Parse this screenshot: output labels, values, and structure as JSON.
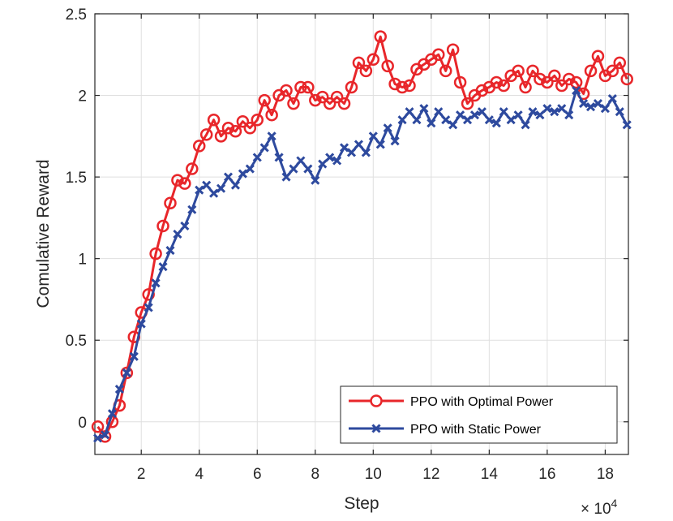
{
  "chart_data": {
    "type": "line",
    "xlabel": "Step",
    "ylabel": "Comulative Reward",
    "x_multiplier_base": "× 10",
    "x_multiplier_exp": "4",
    "xlim": [
      0.4,
      18.8
    ],
    "ylim": [
      -0.2,
      2.5
    ],
    "xticks": [
      2,
      4,
      6,
      8,
      10,
      12,
      14,
      16,
      18
    ],
    "xtick_labels": [
      "2",
      "4",
      "6",
      "8",
      "10",
      "12",
      "14",
      "16",
      "18"
    ],
    "yticks": [
      0,
      0.5,
      1,
      1.5,
      2,
      2.5
    ],
    "ytick_labels": [
      "0",
      "0.5",
      "1",
      "1.5",
      "2",
      "2.5"
    ],
    "grid": true,
    "legend_position": "bottom-right",
    "series": [
      {
        "name": "PPO with Optimal Power",
        "color": "#e8262a",
        "marker": "circle",
        "x": [
          0.5,
          0.75,
          1.0,
          1.25,
          1.5,
          1.75,
          2.0,
          2.25,
          2.5,
          2.75,
          3.0,
          3.25,
          3.5,
          3.75,
          4.0,
          4.25,
          4.5,
          4.75,
          5.0,
          5.25,
          5.5,
          5.75,
          6.0,
          6.25,
          6.5,
          6.75,
          7.0,
          7.25,
          7.5,
          7.75,
          8.0,
          8.25,
          8.5,
          8.75,
          9.0,
          9.25,
          9.5,
          9.75,
          10.0,
          10.25,
          10.5,
          10.75,
          11.0,
          11.25,
          11.5,
          11.75,
          12.0,
          12.25,
          12.5,
          12.75,
          13.0,
          13.25,
          13.5,
          13.75,
          14.0,
          14.25,
          14.5,
          14.75,
          15.0,
          15.25,
          15.5,
          15.75,
          16.0,
          16.25,
          16.5,
          16.75,
          17.0,
          17.25,
          17.5,
          17.75,
          18.0,
          18.25,
          18.5,
          18.75
        ],
        "values": [
          -0.03,
          -0.09,
          0.0,
          0.1,
          0.3,
          0.52,
          0.67,
          0.78,
          1.03,
          1.2,
          1.34,
          1.48,
          1.46,
          1.55,
          1.69,
          1.76,
          1.85,
          1.75,
          1.8,
          1.78,
          1.84,
          1.8,
          1.85,
          1.97,
          1.88,
          2.0,
          2.03,
          1.95,
          2.05,
          2.05,
          1.97,
          1.99,
          1.95,
          1.99,
          1.95,
          2.05,
          2.2,
          2.15,
          2.22,
          2.36,
          2.18,
          2.07,
          2.05,
          2.06,
          2.16,
          2.19,
          2.22,
          2.25,
          2.15,
          2.28,
          2.08,
          1.95,
          2.0,
          2.03,
          2.05,
          2.08,
          2.06,
          2.12,
          2.15,
          2.05,
          2.15,
          2.1,
          2.08,
          2.12,
          2.06,
          2.1,
          2.08,
          2.01,
          2.15,
          2.24,
          2.12,
          2.15,
          2.2,
          2.1
        ]
      },
      {
        "name": "PPO with Static Power",
        "color": "#2e4a9e",
        "marker": "x",
        "x": [
          0.5,
          0.75,
          1.0,
          1.25,
          1.5,
          1.75,
          2.0,
          2.25,
          2.5,
          2.75,
          3.0,
          3.25,
          3.5,
          3.75,
          4.0,
          4.25,
          4.5,
          4.75,
          5.0,
          5.25,
          5.5,
          5.75,
          6.0,
          6.25,
          6.5,
          6.75,
          7.0,
          7.25,
          7.5,
          7.75,
          8.0,
          8.25,
          8.5,
          8.75,
          9.0,
          9.25,
          9.5,
          9.75,
          10.0,
          10.25,
          10.5,
          10.75,
          11.0,
          11.25,
          11.5,
          11.75,
          12.0,
          12.25,
          12.5,
          12.75,
          13.0,
          13.25,
          13.5,
          13.75,
          14.0,
          14.25,
          14.5,
          14.75,
          15.0,
          15.25,
          15.5,
          15.75,
          16.0,
          16.25,
          16.5,
          16.75,
          17.0,
          17.25,
          17.5,
          17.75,
          18.0,
          18.25,
          18.5,
          18.75
        ],
        "values": [
          -0.1,
          -0.08,
          0.05,
          0.2,
          0.3,
          0.4,
          0.6,
          0.7,
          0.85,
          0.95,
          1.05,
          1.15,
          1.2,
          1.3,
          1.42,
          1.45,
          1.4,
          1.43,
          1.5,
          1.45,
          1.52,
          1.55,
          1.62,
          1.68,
          1.75,
          1.62,
          1.5,
          1.55,
          1.6,
          1.55,
          1.48,
          1.58,
          1.62,
          1.6,
          1.68,
          1.65,
          1.7,
          1.65,
          1.75,
          1.7,
          1.8,
          1.72,
          1.85,
          1.9,
          1.85,
          1.92,
          1.83,
          1.9,
          1.85,
          1.82,
          1.88,
          1.85,
          1.88,
          1.9,
          1.85,
          1.83,
          1.9,
          1.85,
          1.88,
          1.82,
          1.9,
          1.88,
          1.92,
          1.9,
          1.92,
          1.88,
          2.03,
          1.95,
          1.93,
          1.95,
          1.92,
          1.98,
          1.9,
          1.82
        ]
      }
    ]
  }
}
